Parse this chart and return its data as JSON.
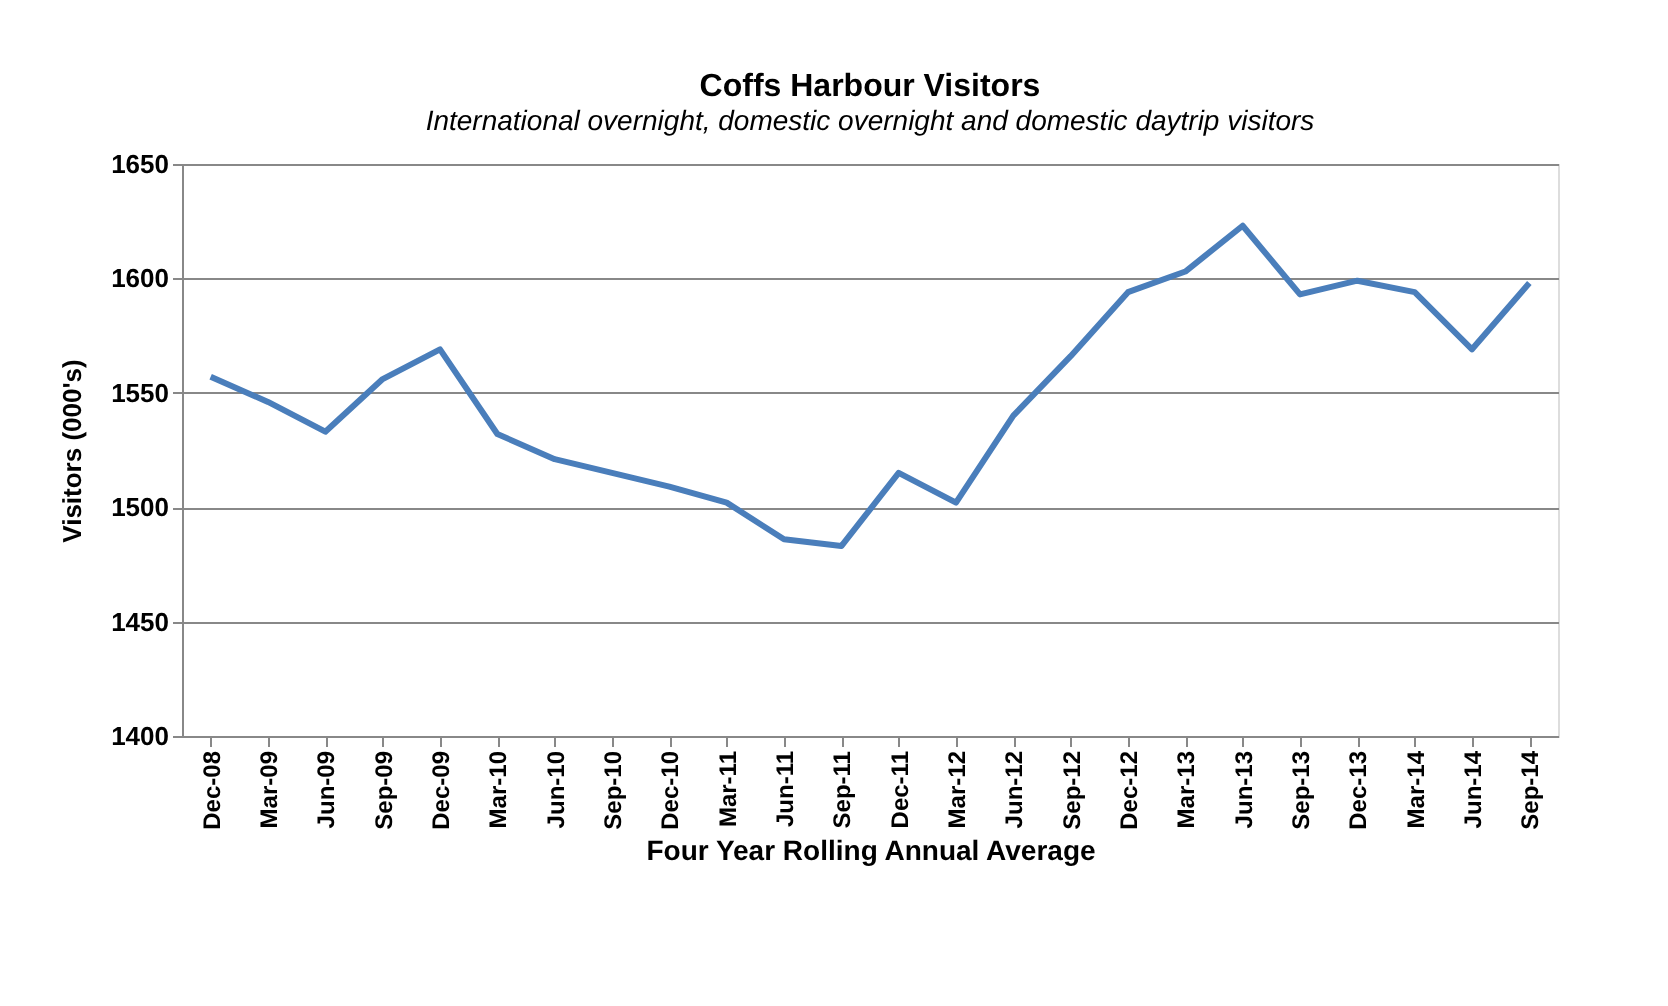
{
  "chart_data": {
    "type": "line",
    "title": "Coffs Harbour Visitors",
    "subtitle": "International overnight, domestic overnight and domestic daytrip visitors",
    "xlabel": "Four Year Rolling Annual Average",
    "ylabel": "Visitors (000's)",
    "categories": [
      "Dec-08",
      "Mar-09",
      "Jun-09",
      "Sep-09",
      "Dec-09",
      "Mar-10",
      "Jun-10",
      "Sep-10",
      "Dec-10",
      "Mar-11",
      "Jun-11",
      "Sep-11",
      "Dec-11",
      "Mar-12",
      "Jun-12",
      "Sep-12",
      "Dec-12",
      "Mar-13",
      "Jun-13",
      "Sep-13",
      "Dec-13",
      "Mar-14",
      "Jun-14",
      "Sep-14"
    ],
    "series": [
      {
        "color": "#4a7ebb",
        "values": [
          1557,
          1546,
          1533,
          1556,
          1569,
          1532,
          1521,
          1515,
          1509,
          1502,
          1486,
          1483,
          1515,
          1502,
          1540,
          1566,
          1594,
          1603,
          1623,
          1593,
          1599,
          1594,
          1569,
          1598
        ]
      }
    ],
    "ylim": [
      1400,
      1650
    ],
    "yticks": [
      1400,
      1450,
      1500,
      1550,
      1600,
      1650
    ],
    "grid": "y",
    "marker": "none",
    "line_style": "solid"
  }
}
